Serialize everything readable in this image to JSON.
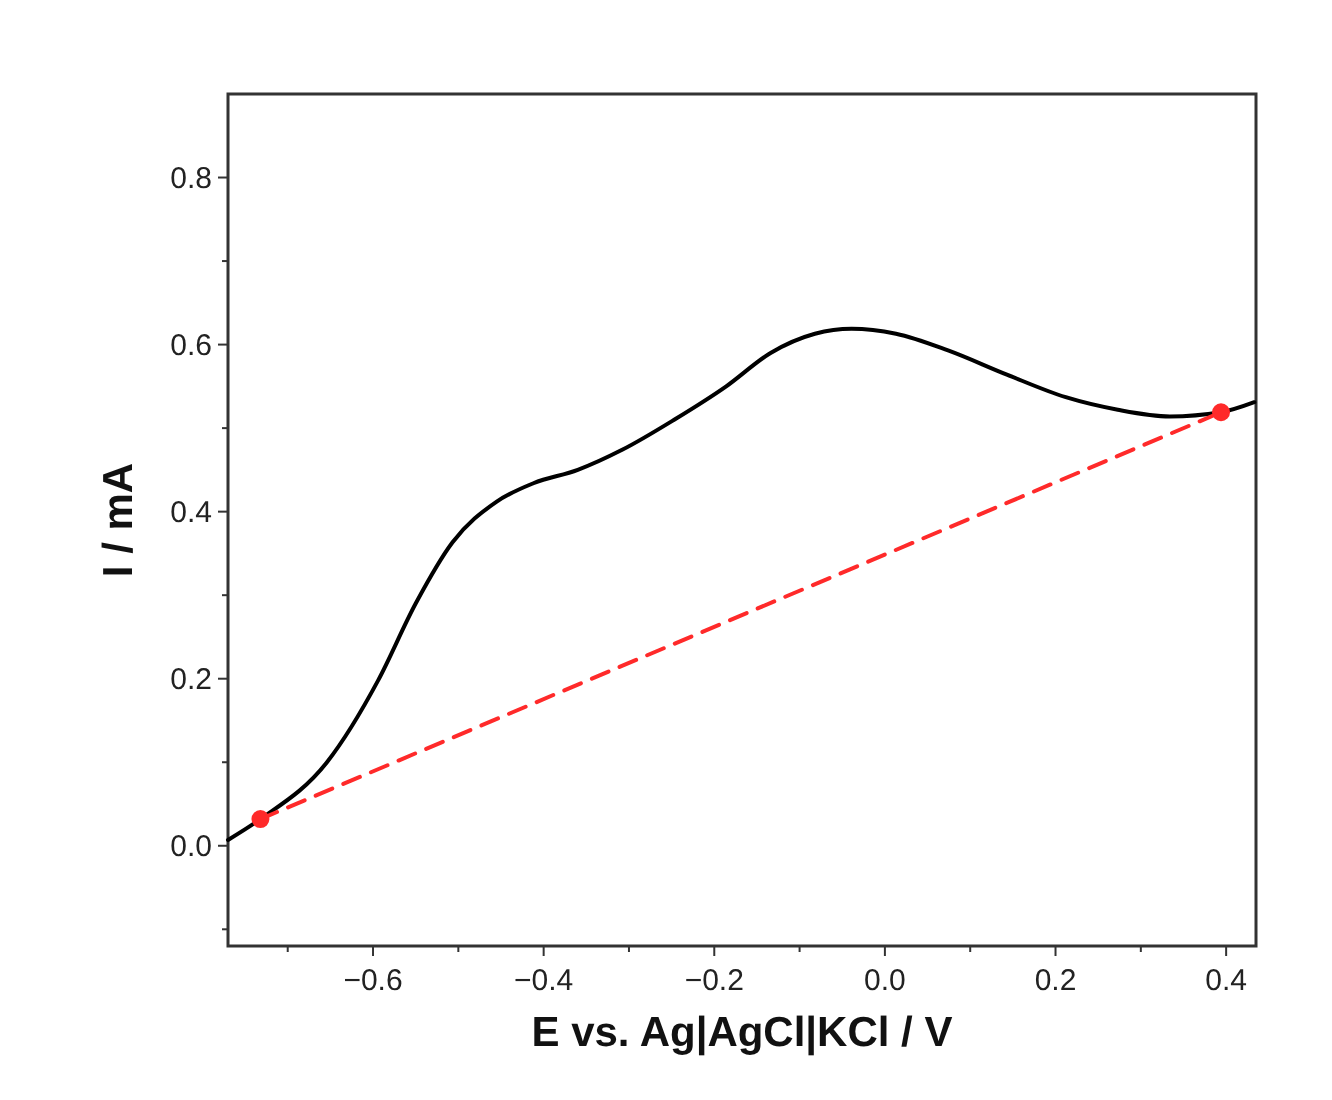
{
  "chart_data": {
    "type": "line",
    "xlabel": "E vs. Ag|AgCl|KCl / V",
    "ylabel": "I / mA",
    "xlim": [
      -0.77,
      0.435
    ],
    "ylim": [
      -0.12,
      0.9
    ],
    "xticks": [
      {
        "value": -0.7,
        "label": null
      },
      {
        "value": -0.6,
        "label": "−0.6"
      },
      {
        "value": -0.5,
        "label": null
      },
      {
        "value": -0.4,
        "label": "−0.4"
      },
      {
        "value": -0.3,
        "label": null
      },
      {
        "value": -0.2,
        "label": "−0.2"
      },
      {
        "value": -0.1,
        "label": null
      },
      {
        "value": 0,
        "label": "0.0"
      },
      {
        "value": 0.1,
        "label": null
      },
      {
        "value": 0.2,
        "label": "0.2"
      },
      {
        "value": 0.3,
        "label": null
      },
      {
        "value": 0.4,
        "label": "0.4"
      }
    ],
    "yticks": [
      {
        "value": -0.1,
        "label": null
      },
      {
        "value": 0,
        "label": "0.0"
      },
      {
        "value": 0.1,
        "label": null
      },
      {
        "value": 0.2,
        "label": "0.2"
      },
      {
        "value": 0.3,
        "label": null
      },
      {
        "value": 0.4,
        "label": "0.4"
      },
      {
        "value": 0.5,
        "label": null
      },
      {
        "value": 0.6,
        "label": "0.6"
      },
      {
        "value": 0.7,
        "label": null
      },
      {
        "value": 0.8,
        "label": "0.8"
      }
    ],
    "grid": false,
    "series": [
      {
        "color": "#000000",
        "marker": "none",
        "line_style": "solid",
        "x": [
          -0.77,
          -0.732,
          -0.654,
          -0.594,
          -0.55,
          -0.507,
          -0.455,
          -0.412,
          -0.36,
          -0.308,
          -0.247,
          -0.186,
          -0.134,
          -0.082,
          -0.039,
          0.013,
          0.074,
          0.143,
          0.212,
          0.273,
          0.334,
          0.394,
          0.433
        ],
        "values": [
          0.007,
          0.032,
          0.1,
          0.198,
          0.29,
          0.363,
          0.412,
          0.434,
          0.45,
          0.474,
          0.51,
          0.55,
          0.59,
          0.613,
          0.619,
          0.613,
          0.593,
          0.564,
          0.537,
          0.522,
          0.514,
          0.519,
          0.531
        ]
      },
      {
        "color": "#ff2a2a",
        "marker": "circle",
        "line_style": "dashed",
        "x": [
          -0.732,
          0.394
        ],
        "values": [
          0.032,
          0.519
        ]
      }
    ]
  }
}
